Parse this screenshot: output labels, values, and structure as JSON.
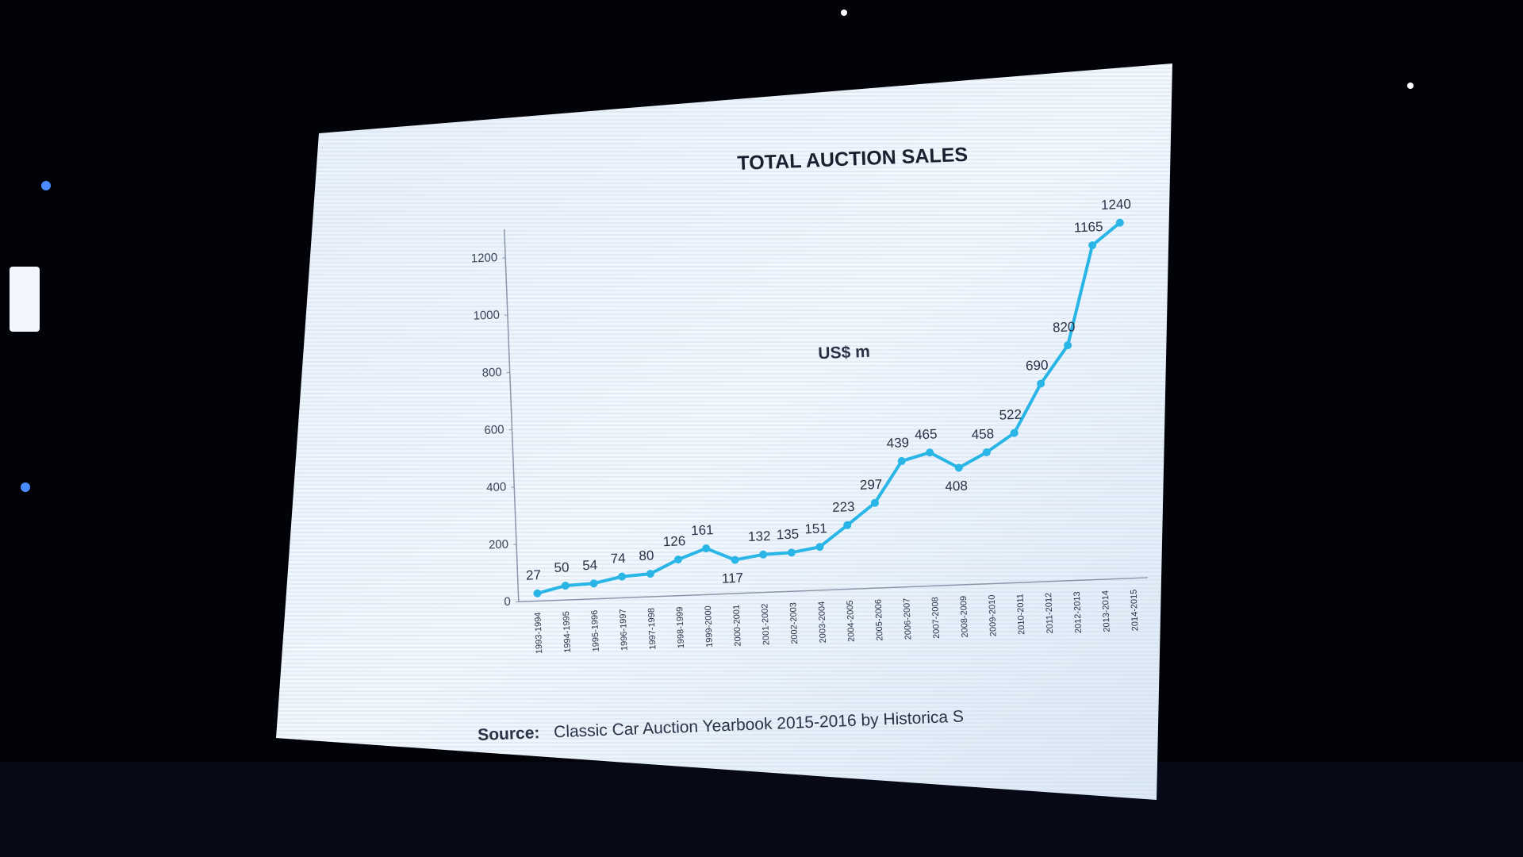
{
  "chart_data": {
    "type": "line",
    "title": "TOTAL AUCTION SALES",
    "y_label": "US$ m",
    "source_label": "Source:",
    "source_text": "Classic Car Auction Yearbook 2015-2016 by Historica S",
    "categories": [
      "1993-1994",
      "1994-1995",
      "1995-1996",
      "1996-1997",
      "1997-1998",
      "1998-1999",
      "1999-2000",
      "2000-2001",
      "2001-2002",
      "2002-2003",
      "2003-2004",
      "2004-2005",
      "2005-2006",
      "2006-2007",
      "2007-2008",
      "2008-2009",
      "2009-2010",
      "2010-2011",
      "2011-2012",
      "2012-2013",
      "2013-2014",
      "2014-2015"
    ],
    "series": [
      {
        "name": "Total auction sales",
        "color": "#29b6e6",
        "values": [
          27,
          50,
          54,
          74,
          80,
          126,
          161,
          117,
          132,
          135,
          151,
          223,
          297,
          439,
          465,
          408,
          458,
          522,
          690,
          820,
          1165,
          1240
        ]
      }
    ],
    "ylim": [
      0,
      1300
    ],
    "yticks": [
      0,
      200,
      400,
      600,
      800,
      1000,
      1200
    ],
    "grid": false
  }
}
